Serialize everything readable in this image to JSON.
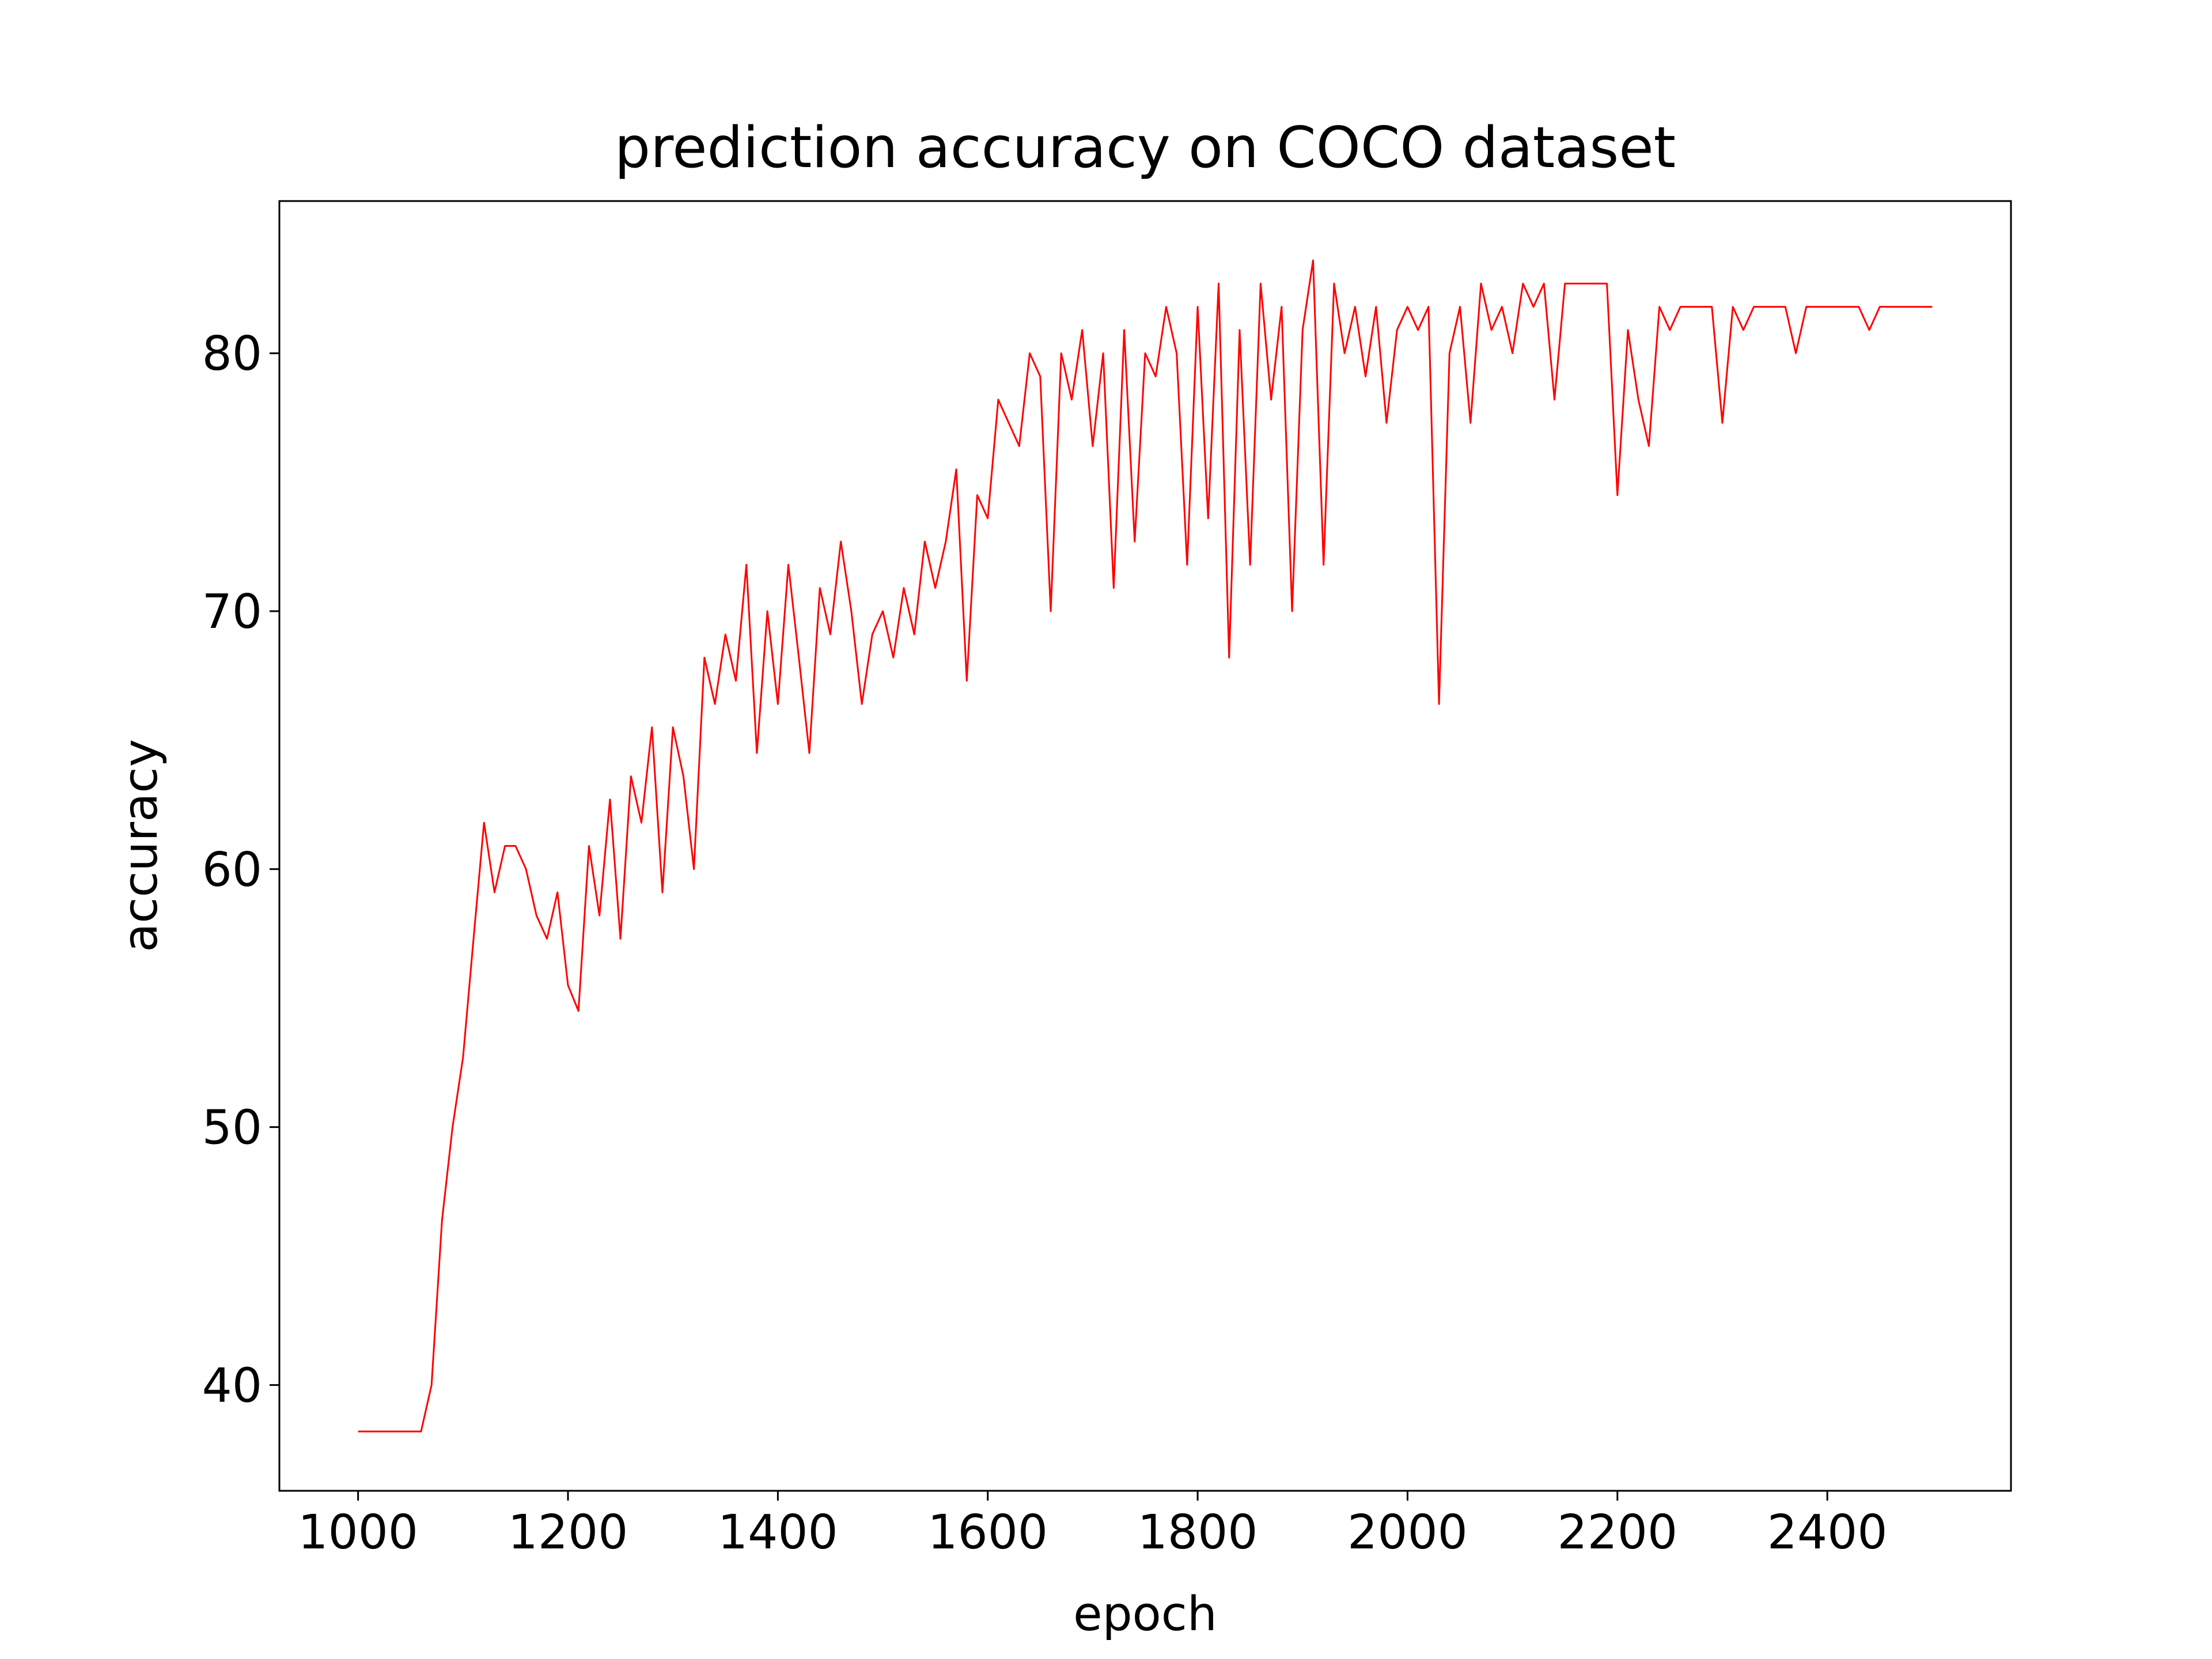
{
  "chart_data": {
    "type": "line",
    "title": "prediction accuracy on COCO dataset",
    "xlabel": "epoch",
    "ylabel": "accuracy",
    "color": "#ff0000",
    "x": [
      1000,
      1010,
      1020,
      1030,
      1040,
      1050,
      1060,
      1070,
      1080,
      1090,
      1100,
      1110,
      1120,
      1130,
      1140,
      1150,
      1160,
      1170,
      1180,
      1190,
      1200,
      1210,
      1220,
      1230,
      1240,
      1250,
      1260,
      1270,
      1280,
      1290,
      1300,
      1310,
      1320,
      1330,
      1340,
      1350,
      1360,
      1370,
      1380,
      1390,
      1400,
      1410,
      1420,
      1430,
      1440,
      1450,
      1460,
      1470,
      1480,
      1490,
      1500,
      1510,
      1520,
      1530,
      1540,
      1550,
      1560,
      1570,
      1580,
      1590,
      1600,
      1610,
      1620,
      1630,
      1640,
      1650,
      1660,
      1670,
      1680,
      1690,
      1700,
      1710,
      1720,
      1730,
      1740,
      1750,
      1760,
      1770,
      1780,
      1790,
      1800,
      1810,
      1820,
      1830,
      1840,
      1850,
      1860,
      1870,
      1880,
      1890,
      1900,
      1910,
      1920,
      1930,
      1940,
      1950,
      1960,
      1970,
      1980,
      1990,
      2000,
      2010,
      2020,
      2030,
      2040,
      2050,
      2060,
      2070,
      2080,
      2090,
      2100,
      2110,
      2120,
      2130,
      2140,
      2150,
      2160,
      2170,
      2180,
      2190,
      2200,
      2210,
      2220,
      2230,
      2240,
      2250,
      2260,
      2270,
      2280,
      2290,
      2300,
      2310,
      2320,
      2330,
      2340,
      2350,
      2360,
      2370,
      2380,
      2390,
      2400,
      2410,
      2420,
      2430,
      2440,
      2450,
      2460,
      2470,
      2480,
      2490,
      2500
    ],
    "values": [
      38.2,
      38.2,
      38.2,
      38.2,
      38.2,
      38.2,
      38.2,
      40,
      46.4,
      50,
      52.7,
      57.3,
      61.8,
      59.1,
      60.9,
      60.9,
      60,
      58.2,
      57.3,
      59.1,
      55.5,
      54.5,
      60.9,
      58.2,
      62.7,
      57.3,
      63.6,
      61.8,
      65.5,
      59.1,
      65.5,
      63.6,
      60,
      68.2,
      66.4,
      69.1,
      67.3,
      71.8,
      64.5,
      70,
      66.4,
      71.8,
      68.2,
      64.5,
      70.9,
      69.1,
      72.7,
      70,
      66.4,
      69.1,
      70,
      68.2,
      70.9,
      69.1,
      72.7,
      70.9,
      72.7,
      75.5,
      67.3,
      74.5,
      73.6,
      78.2,
      77.3,
      76.4,
      80,
      79.1,
      70,
      80,
      78.2,
      80.9,
      76.4,
      80,
      70.9,
      80.9,
      72.7,
      80,
      79.1,
      81.8,
      80,
      71.8,
      81.8,
      73.6,
      82.7,
      68.2,
      80.9,
      71.8,
      82.7,
      78.2,
      81.8,
      70,
      80.9,
      83.6,
      71.8,
      82.7,
      80,
      81.8,
      79.1,
      81.8,
      77.3,
      80.9,
      81.8,
      80.9,
      81.8,
      66.4,
      80,
      81.8,
      77.3,
      82.7,
      80.9,
      81.8,
      80,
      82.7,
      81.8,
      82.7,
      78.2,
      82.7,
      82.7,
      82.7,
      82.7,
      82.7,
      74.5,
      80.9,
      78.2,
      76.4,
      81.8,
      80.9,
      81.8,
      81.8,
      81.8,
      81.8,
      77.3,
      81.8,
      80.9,
      81.8,
      81.8,
      81.8,
      81.8,
      80,
      81.8,
      81.8,
      81.8,
      81.8,
      81.8,
      81.8,
      80.9,
      81.8,
      81.8,
      81.8,
      81.8,
      81.8,
      81.8
    ],
    "xlim": [
      925,
      2575
    ],
    "xticks": [
      1000,
      1200,
      1400,
      1600,
      1800,
      2000,
      2200,
      2400
    ],
    "ylim": [
      35.9,
      85.9
    ],
    "yticks": [
      40,
      50,
      60,
      70,
      80
    ]
  }
}
